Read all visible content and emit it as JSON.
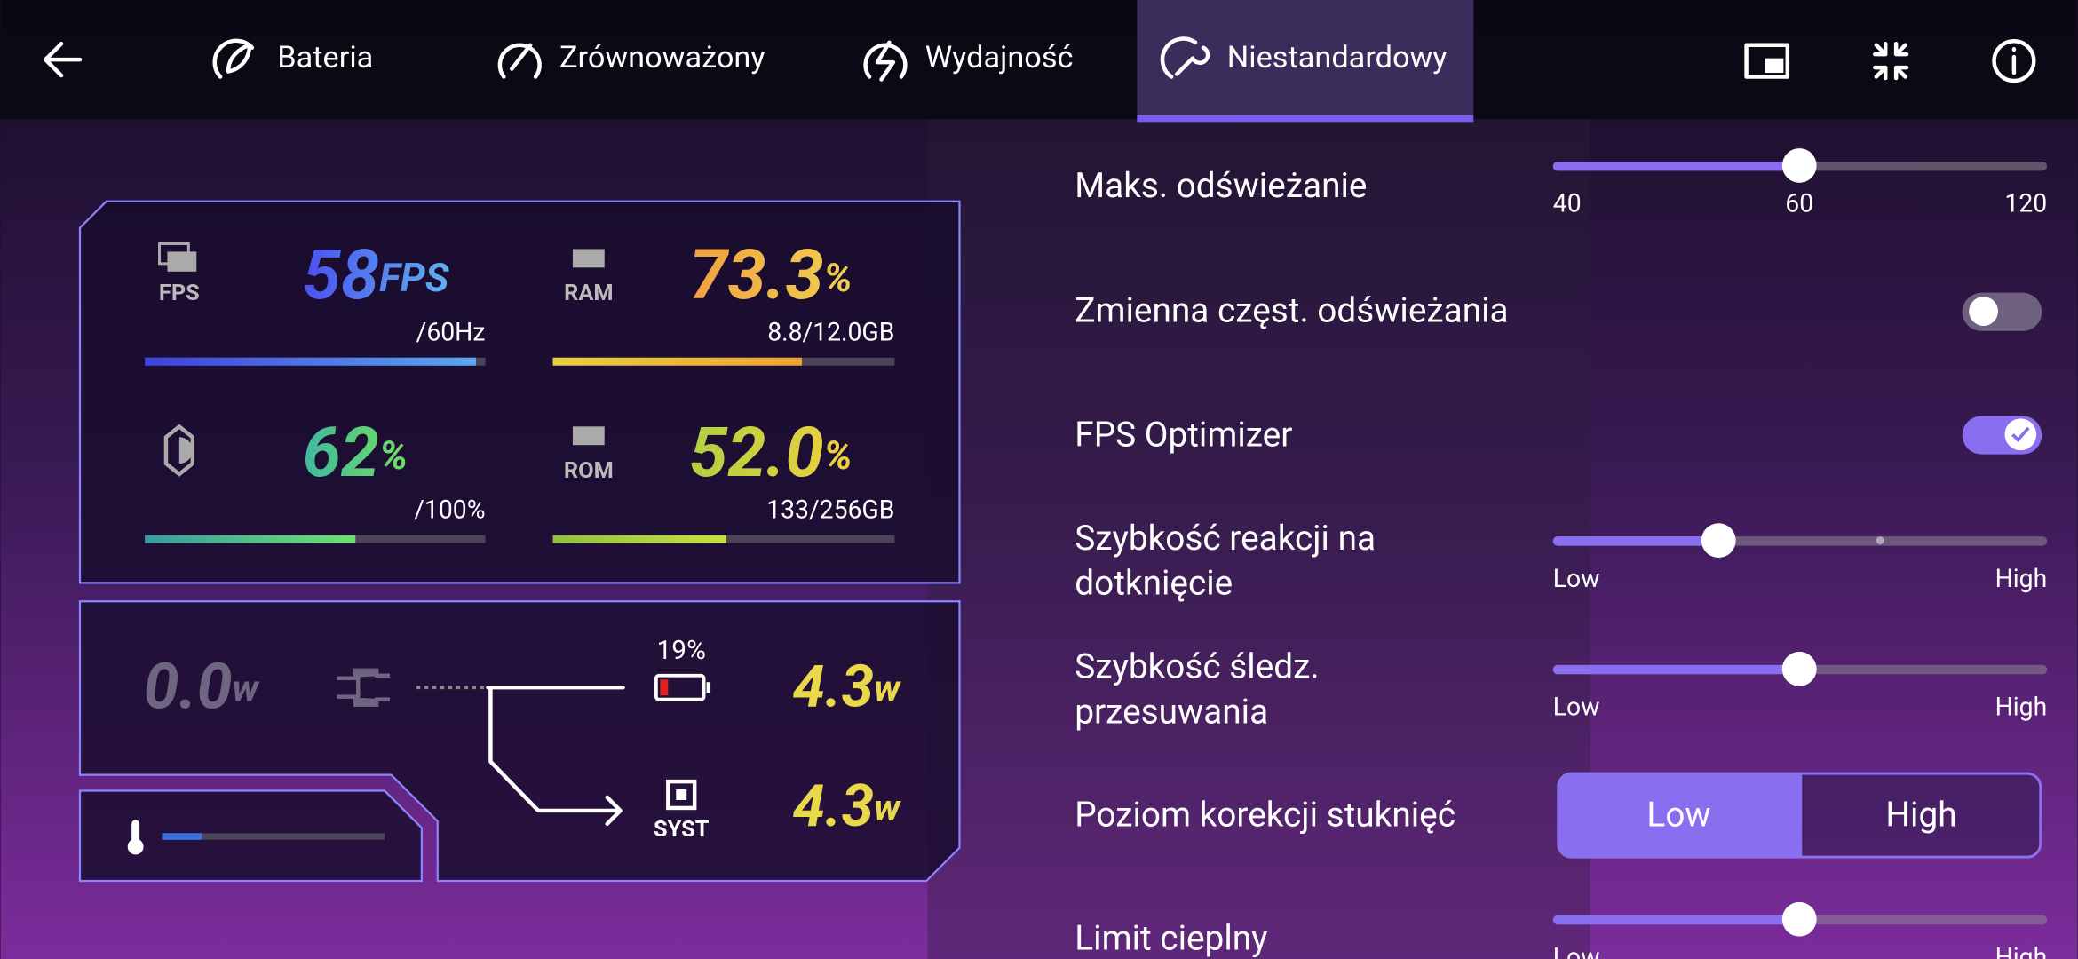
{
  "tabs": [
    "Bateria",
    "Zrównoważony",
    "Wydajność",
    "Niestandardowy"
  ],
  "metrics": {
    "fps": {
      "label": "FPS",
      "value": "58",
      "unit": "FPS",
      "detail": "/60Hz"
    },
    "ram": {
      "label": "RAM",
      "value": "73.3",
      "unit": "%",
      "detail": "8.8/12.0GB"
    },
    "brightness": {
      "value": "62",
      "unit": "%",
      "detail": "/100%"
    },
    "rom": {
      "label": "ROM",
      "value": "52.0",
      "unit": "%",
      "detail": "133/256GB"
    }
  },
  "power": {
    "input": {
      "value": "0.0",
      "unit": "w"
    },
    "battery": "19%",
    "battery_output": {
      "value": "4.3",
      "unit": "w"
    },
    "system_label": "SYST",
    "system_output": {
      "value": "4.3",
      "unit": "w"
    }
  },
  "settings": {
    "max_refresh": {
      "label": "Maks. odświeżanie",
      "ticks": [
        "40",
        "60",
        "120"
      ]
    },
    "variable_refresh": {
      "label": "Zmienna częst. odświeżania"
    },
    "fps_optimizer": {
      "label": "FPS Optimizer"
    },
    "touch_response": {
      "label": [
        "Szybkość reakcji na",
        "dotknięcie"
      ],
      "low": "Low",
      "high": "High"
    },
    "swipe_tracking": {
      "label": [
        "Szybkość śledz.",
        "przesuwania"
      ],
      "low": "Low",
      "high": "High"
    },
    "tap_correction": {
      "label": "Poziom korekcji stuknięć",
      "options": [
        "Low",
        "High"
      ]
    },
    "thermal_limit": {
      "label": "Limit cieplny",
      "low": "Low",
      "high": "High"
    }
  }
}
